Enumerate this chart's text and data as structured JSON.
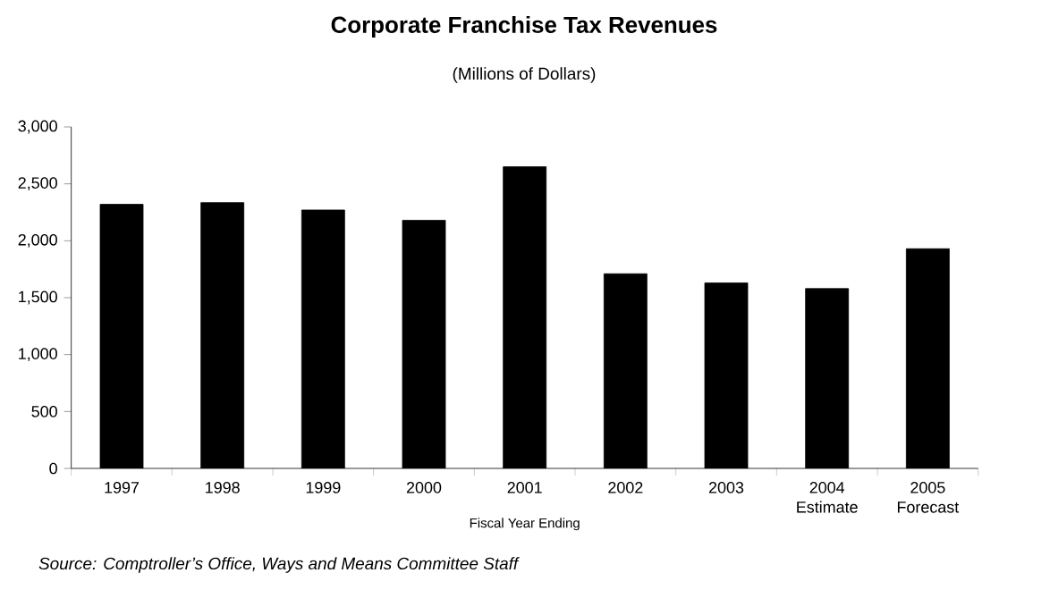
{
  "chart_data": {
    "type": "bar",
    "title": "Corporate Franchise Tax Revenues",
    "subtitle": "(Millions of Dollars)",
    "xlabel": "Fiscal Year Ending",
    "annotations": [
      "Source: Comptroller’s Office, Ways and Means Committee Staff"
    ],
    "categories": [
      "1997",
      "1998",
      "1999",
      "2000",
      "2001",
      "2002",
      "2003",
      "2004 Estimate",
      "2005 Forecast"
    ],
    "values": [
      2320,
      2335,
      2270,
      2180,
      2650,
      1710,
      1630,
      1580,
      1930
    ],
    "color": "#000000",
    "ylim": [
      0,
      3000
    ],
    "yticks": [
      0,
      500,
      {
        "value": 1000,
        "label": "1,000"
      },
      {
        "value": 1500,
        "label": "1,500"
      },
      {
        "value": 2000,
        "label": "2,000"
      },
      {
        "value": 2500,
        "label": "2,500"
      },
      {
        "value": 3000,
        "label": "3,000"
      }
    ]
  }
}
